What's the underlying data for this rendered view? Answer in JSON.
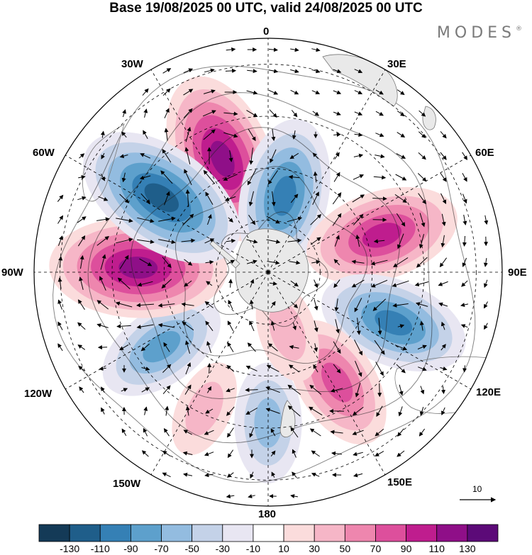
{
  "title": "Base 19/08/2025 00 UTC, valid 24/08/2025 00 UTC",
  "brand": "MODES",
  "brand_mark": "®",
  "longitude_labels": {
    "lon_0": "0",
    "lon_30e": "30E",
    "lon_60e": "60E",
    "lon_90e": "90E",
    "lon_120e": "120E",
    "lon_150e": "150E",
    "lon_180": "180",
    "lon_150w": "150W",
    "lon_120w": "120W",
    "lon_90w": "90W",
    "lon_60w": "60W",
    "lon_30w": "30W"
  },
  "vector_scale_label": "10",
  "colorbar": {
    "ticks": [
      "-130",
      "-110",
      "-90",
      "-70",
      "-50",
      "-30",
      "-10",
      "10",
      "30",
      "50",
      "70",
      "90",
      "110",
      "130"
    ],
    "colors": [
      "#143a57",
      "#1f5e8a",
      "#3580b5",
      "#5da0cc",
      "#93bce0",
      "#c4d2e8",
      "#e8e6f2",
      "#ffffff",
      "#fbdcdc",
      "#f6b6c7",
      "#ee86ae",
      "#dd4f9c",
      "#bf1d8e",
      "#8f0f88",
      "#5c0a78"
    ]
  },
  "anomaly_centers": [
    {
      "lon_deg": -22,
      "colat_deg": 47,
      "value": 120
    },
    {
      "lon_deg": 12,
      "colat_deg": 30,
      "value": -100
    },
    {
      "lon_deg": 72,
      "colat_deg": 46,
      "value": 100
    },
    {
      "lon_deg": 112,
      "colat_deg": 52,
      "value": -95
    },
    {
      "lon_deg": 148,
      "colat_deg": 50,
      "value": 80
    },
    {
      "lon_deg": 180,
      "colat_deg": 58,
      "value": -60
    },
    {
      "lon_deg": 162,
      "colat_deg": 24,
      "value": 40
    },
    {
      "lon_deg": -125,
      "colat_deg": 50,
      "value": -75
    },
    {
      "lon_deg": -88,
      "colat_deg": 50,
      "value": 125
    },
    {
      "lon_deg": -55,
      "colat_deg": 50,
      "value": -125
    },
    {
      "lon_deg": -155,
      "colat_deg": 58,
      "value": 35
    }
  ]
}
